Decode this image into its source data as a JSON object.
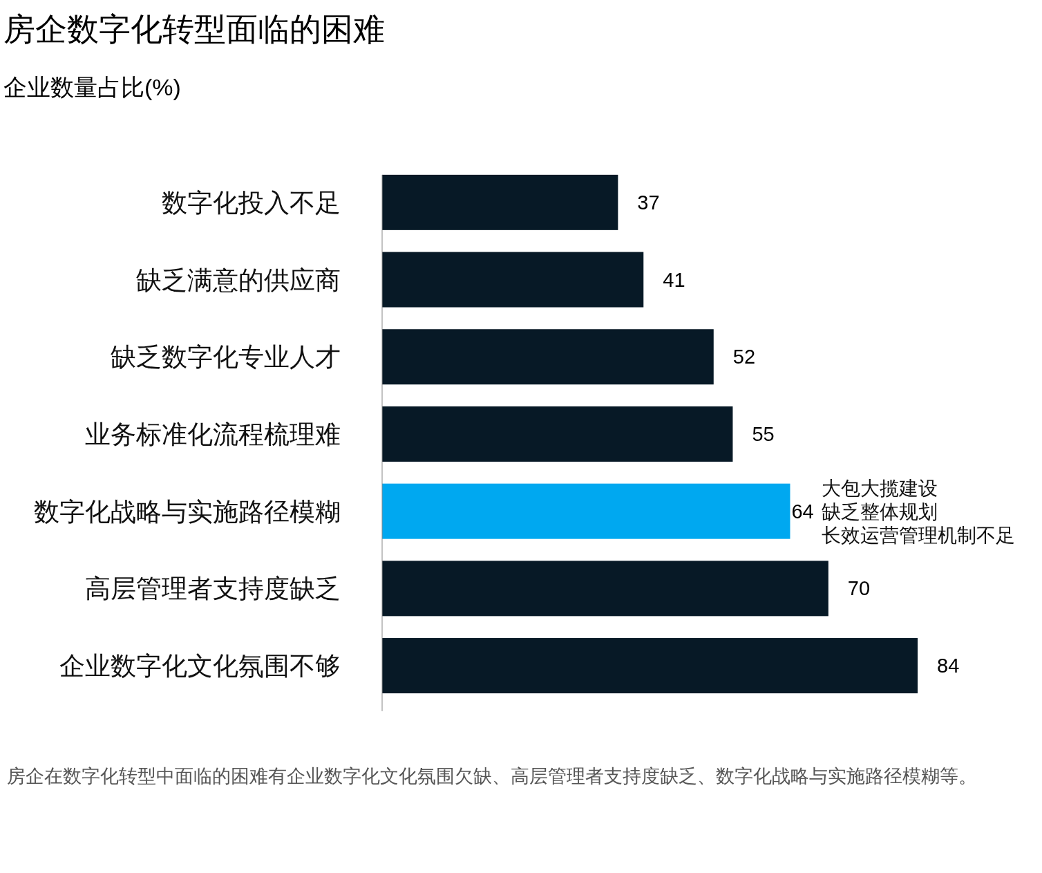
{
  "chart_data": {
    "type": "bar",
    "orientation": "horizontal",
    "title": "房企数字化转型面临的困难",
    "subtitle": "企业数量占比(%)",
    "categories": [
      "数字化投入不足",
      "缺乏满意的供应商",
      "缺乏数字化专业人才",
      "业务标准化流程梳理难",
      "数字化战略与实施路径模糊",
      "高层管理者支持度缺乏",
      "企业数字化文化氛围不够"
    ],
    "values": [
      37,
      41,
      52,
      55,
      64,
      70,
      84
    ],
    "colors": [
      "#071926",
      "#071926",
      "#071926",
      "#071926",
      "#00a8f0",
      "#071926",
      "#071926"
    ],
    "data_labels": true,
    "annotations": [
      "大包大揽建设",
      "缺乏整体规划",
      "长效运营管理机制不足",
      "房企在数字化转型中面临的困难有企业数字化文化氛围欠缺、高层管理者支持度缺乏、数字化战略与实施路径模糊等。"
    ]
  }
}
